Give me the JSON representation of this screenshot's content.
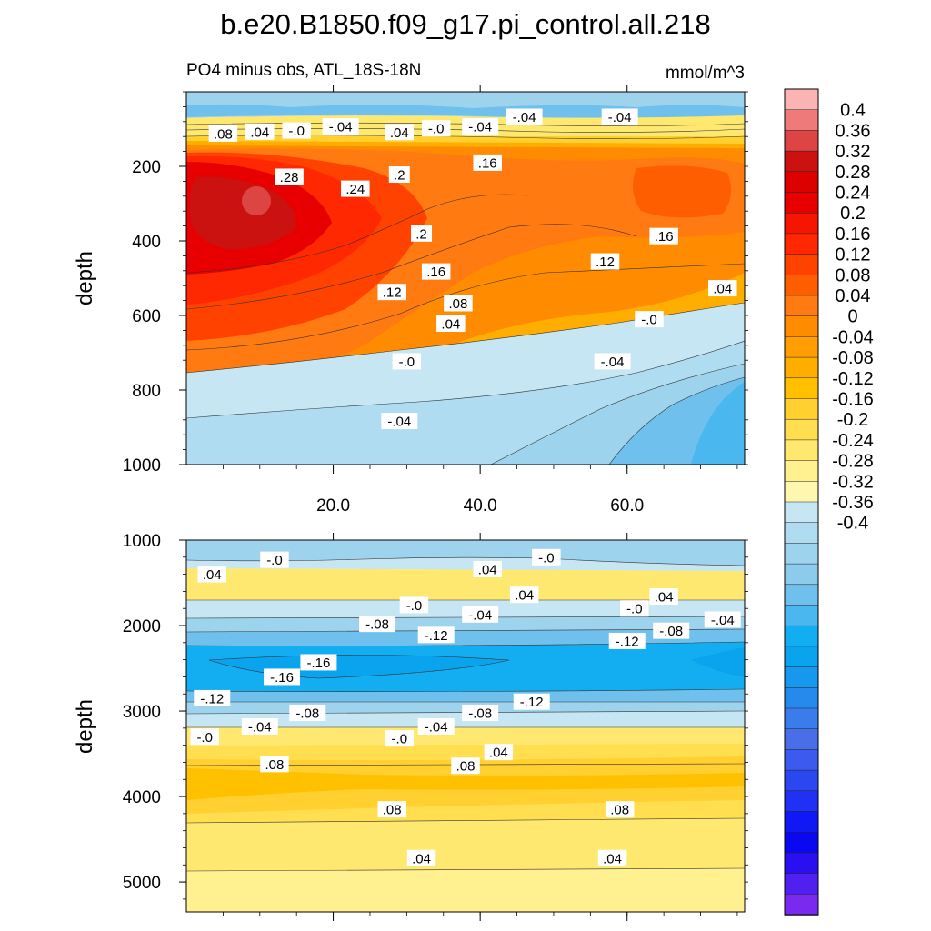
{
  "chart_data": {
    "type": "contour",
    "title": "b.e20.B1850.f09_g17.pi_control.all.218",
    "subtitle_left": "PO4 minus obs, ATL_18S-18N",
    "units": "mmol/m^3",
    "colorbar": {
      "levels": [
        0.4,
        0.36,
        0.32,
        0.28,
        0.24,
        0.2,
        0.16,
        0.12,
        0.08,
        0.04,
        0,
        -0.04,
        -0.08,
        -0.12,
        -0.16,
        -0.2,
        -0.24,
        -0.28,
        -0.32,
        -0.36,
        -0.4
      ],
      "labels": [
        "0.4",
        "0.36",
        "0.32",
        "0.28",
        "0.24",
        "0.2",
        "0.16",
        "0.12",
        "0.08",
        "0.04",
        "0",
        "-0.04",
        "-0.08",
        "-0.12",
        "-0.16",
        "-0.2",
        "-0.24",
        "-0.28",
        "-0.32",
        "-0.36",
        "-0.4"
      ],
      "colors": [
        "#fbb4b4",
        "#ef7a7a",
        "#dd4444",
        "#cc1111",
        "#dd0000",
        "#e80000",
        "#f51500",
        "#ff2800",
        "#ff4200",
        "#ff5e00",
        "#ff7a10",
        "#ff8c00",
        "#ff9e00",
        "#ffae00",
        "#ffc000",
        "#ffd030",
        "#ffde50",
        "#ffe870",
        "#fff090",
        "#fff7b0",
        "#c6e6f4",
        "#b0dcf2",
        "#9ed3ee",
        "#8ccbec",
        "#6fc0ec",
        "#4ab8ef",
        "#13aef1",
        "#0aa3ee",
        "#1698ee",
        "#258aec",
        "#3b7cec",
        "#4a6ee8",
        "#3c5bee",
        "#2b47f0",
        "#2030f5",
        "#1018f5",
        "#0a08f0",
        "#2a10f0",
        "#5020f0",
        "#7a2af0"
      ]
    },
    "panels": [
      {
        "name": "upper",
        "xlim": [
          0,
          76
        ],
        "ylim": [
          1000,
          0
        ],
        "ylabel": "depth",
        "yticks": [
          200,
          400,
          600,
          800,
          1000
        ],
        "xticks": [
          20,
          40,
          60
        ],
        "xtick_labels": [
          "20.0",
          "40.0",
          "60.0"
        ],
        "contour_labels": [
          {
            "text": ".08",
            "x": 5,
            "y": 112
          },
          {
            "text": ".04",
            "x": 10,
            "y": 107
          },
          {
            "text": "-.0",
            "x": 15,
            "y": 104
          },
          {
            "text": "-.04",
            "x": 21,
            "y": 93
          },
          {
            "text": ".04",
            "x": 29,
            "y": 108
          },
          {
            "text": "-.0",
            "x": 34,
            "y": 98
          },
          {
            "text": "-.04",
            "x": 40,
            "y": 93
          },
          {
            "text": "-.04",
            "x": 46,
            "y": 67
          },
          {
            "text": "-.04",
            "x": 59,
            "y": 67
          },
          {
            "text": ".28",
            "x": 14,
            "y": 228
          },
          {
            "text": ".24",
            "x": 23,
            "y": 260
          },
          {
            "text": ".2",
            "x": 29,
            "y": 222
          },
          {
            "text": ".16",
            "x": 41,
            "y": 190
          },
          {
            "text": ".2",
            "x": 32,
            "y": 380
          },
          {
            "text": ".16",
            "x": 34,
            "y": 482
          },
          {
            "text": ".12",
            "x": 57,
            "y": 455
          },
          {
            "text": ".16",
            "x": 65,
            "y": 387
          },
          {
            "text": ".12",
            "x": 28,
            "y": 537
          },
          {
            "text": ".08",
            "x": 37,
            "y": 567
          },
          {
            "text": ".04",
            "x": 73,
            "y": 527
          },
          {
            "text": ".04",
            "x": 36,
            "y": 622
          },
          {
            "text": "-.0",
            "x": 63,
            "y": 610
          },
          {
            "text": "-.0",
            "x": 30,
            "y": 723
          },
          {
            "text": "-.04",
            "x": 58,
            "y": 723
          },
          {
            "text": "-.04",
            "x": 29,
            "y": 883
          }
        ]
      },
      {
        "name": "lower",
        "xlim": [
          0,
          76
        ],
        "ylim": [
          5350,
          1000
        ],
        "ylabel": "depth",
        "yticks": [
          1000,
          2000,
          3000,
          4000,
          5000
        ],
        "xticks": [
          20,
          40,
          60
        ],
        "xtick_labels": [],
        "contour_labels": [
          {
            "text": "-.0",
            "x": 12,
            "y": 1230
          },
          {
            "text": ".04",
            "x": 3.5,
            "y": 1400
          },
          {
            "text": ".04",
            "x": 41,
            "y": 1340
          },
          {
            "text": "-.0",
            "x": 49,
            "y": 1200
          },
          {
            "text": ".04",
            "x": 46,
            "y": 1640
          },
          {
            "text": "-.0",
            "x": 31,
            "y": 1760
          },
          {
            "text": "-.04",
            "x": 40,
            "y": 1870
          },
          {
            "text": "-.0",
            "x": 61,
            "y": 1800
          },
          {
            "text": ".04",
            "x": 65,
            "y": 1660
          },
          {
            "text": "-.08",
            "x": 26,
            "y": 1980
          },
          {
            "text": "-.12",
            "x": 34,
            "y": 2110
          },
          {
            "text": "-.08",
            "x": 66,
            "y": 2060
          },
          {
            "text": "-.04",
            "x": 73,
            "y": 1930
          },
          {
            "text": "-.12",
            "x": 60,
            "y": 2180
          },
          {
            "text": "-.16",
            "x": 18,
            "y": 2430
          },
          {
            "text": "-.16",
            "x": 13,
            "y": 2600
          },
          {
            "text": "-.12",
            "x": 3.5,
            "y": 2850
          },
          {
            "text": "-.12",
            "x": 47,
            "y": 2890
          },
          {
            "text": "-.08",
            "x": 16.5,
            "y": 3020
          },
          {
            "text": "-.04",
            "x": 10,
            "y": 3180
          },
          {
            "text": "-.0",
            "x": 2.5,
            "y": 3300
          },
          {
            "text": "-.08",
            "x": 40,
            "y": 3020
          },
          {
            "text": "-.04",
            "x": 34,
            "y": 3180
          },
          {
            "text": "-.0",
            "x": 29,
            "y": 3320
          },
          {
            "text": ".04",
            "x": 42.5,
            "y": 3480
          },
          {
            "text": ".08",
            "x": 12,
            "y": 3620
          },
          {
            "text": ".08",
            "x": 38,
            "y": 3640
          },
          {
            "text": ".08",
            "x": 28,
            "y": 4150
          },
          {
            "text": ".08",
            "x": 59,
            "y": 4150
          },
          {
            "text": ".04",
            "x": 32,
            "y": 4720
          },
          {
            "text": ".04",
            "x": 58,
            "y": 4720
          }
        ]
      }
    ]
  }
}
